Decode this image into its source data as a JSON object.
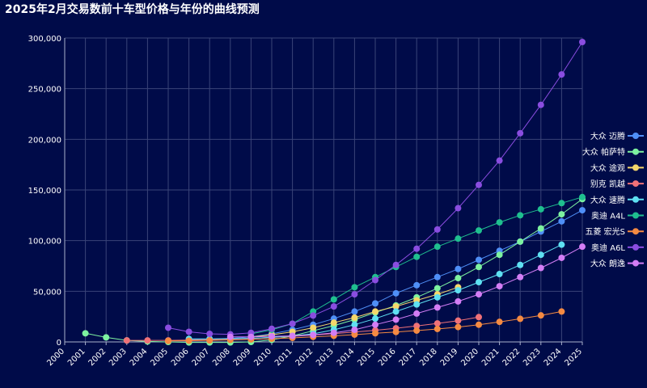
{
  "chart_data": {
    "type": "line",
    "title": "2025年2月交易数前十车型价格与年份的曲线预测",
    "xlabel": "",
    "ylabel": "",
    "x": [
      2000,
      2001,
      2002,
      2003,
      2004,
      2005,
      2006,
      2007,
      2008,
      2009,
      2010,
      2011,
      2012,
      2013,
      2014,
      2015,
      2016,
      2017,
      2018,
      2019,
      2020,
      2021,
      2022,
      2023,
      2024,
      2025
    ],
    "xlim": [
      2000,
      2025
    ],
    "ylim": [
      0,
      300000
    ],
    "yticks": [
      0,
      50000,
      100000,
      150000,
      200000,
      250000,
      300000
    ],
    "ytick_labels": [
      "0",
      "50,000",
      "100,000",
      "150,000",
      "200,000",
      "250,000",
      "300,000"
    ],
    "grid": true,
    "legend_position": "right",
    "series": [
      {
        "name": "大众 迈腾",
        "color": "#4f8ff7",
        "points": [
          [
            2006,
            2500
          ],
          [
            2007,
            2800
          ],
          [
            2008,
            3500
          ],
          [
            2009,
            5000
          ],
          [
            2010,
            8000
          ],
          [
            2011,
            12000
          ],
          [
            2012,
            17000
          ],
          [
            2013,
            23000
          ],
          [
            2014,
            30000
          ],
          [
            2015,
            38000
          ],
          [
            2016,
            48000
          ],
          [
            2017,
            56000
          ],
          [
            2018,
            64000
          ],
          [
            2019,
            72000
          ],
          [
            2020,
            81000
          ],
          [
            2021,
            90000
          ],
          [
            2022,
            99000
          ],
          [
            2023,
            109000
          ],
          [
            2024,
            119000
          ],
          [
            2025,
            130000
          ]
        ]
      },
      {
        "name": "大众 帕萨特",
        "color": "#7df2a0",
        "points": [
          [
            2001,
            8500
          ],
          [
            2002,
            4500
          ],
          [
            2003,
            1500
          ],
          [
            2004,
            500
          ],
          [
            2005,
            0
          ],
          [
            2006,
            -500
          ],
          [
            2007,
            -500
          ],
          [
            2008,
            -500
          ],
          [
            2009,
            0
          ],
          [
            2010,
            2000
          ],
          [
            2011,
            6000
          ],
          [
            2012,
            11000
          ],
          [
            2013,
            16000
          ],
          [
            2014,
            22000
          ],
          [
            2015,
            29000
          ],
          [
            2016,
            36000
          ],
          [
            2017,
            44000
          ],
          [
            2018,
            53000
          ],
          [
            2019,
            63000
          ],
          [
            2020,
            74000
          ],
          [
            2021,
            86000
          ],
          [
            2022,
            99000
          ],
          [
            2023,
            112000
          ],
          [
            2024,
            126000
          ],
          [
            2025,
            141000
          ]
        ]
      },
      {
        "name": "大众 途观",
        "color": "#f5d76b",
        "points": [
          [
            2009,
            5000
          ],
          [
            2010,
            7000
          ],
          [
            2011,
            10000
          ],
          [
            2012,
            14000
          ],
          [
            2013,
            19000
          ],
          [
            2014,
            24000
          ],
          [
            2015,
            30000
          ],
          [
            2016,
            35000
          ],
          [
            2017,
            41000
          ],
          [
            2018,
            47000
          ],
          [
            2019,
            54000
          ]
        ]
      },
      {
        "name": "别克 凯越",
        "color": "#f07178",
        "points": [
          [
            2003,
            1500
          ],
          [
            2004,
            1500
          ],
          [
            2005,
            1500
          ],
          [
            2006,
            1800
          ],
          [
            2007,
            2200
          ],
          [
            2008,
            2800
          ],
          [
            2009,
            3500
          ],
          [
            2010,
            4500
          ],
          [
            2011,
            5500
          ],
          [
            2012,
            6800
          ],
          [
            2013,
            8200
          ],
          [
            2014,
            9700
          ],
          [
            2015,
            11500
          ],
          [
            2016,
            13500
          ],
          [
            2017,
            15800
          ],
          [
            2018,
            18300
          ],
          [
            2019,
            21000
          ],
          [
            2020,
            24500
          ]
        ]
      },
      {
        "name": "大众 速腾",
        "color": "#5ee0f2",
        "points": [
          [
            2006,
            3000
          ],
          [
            2007,
            3000
          ],
          [
            2008,
            3200
          ],
          [
            2009,
            3600
          ],
          [
            2010,
            4500
          ],
          [
            2011,
            6000
          ],
          [
            2012,
            8000
          ],
          [
            2013,
            12000
          ],
          [
            2014,
            17000
          ],
          [
            2015,
            23000
          ],
          [
            2016,
            30000
          ],
          [
            2017,
            37000
          ],
          [
            2018,
            44000
          ],
          [
            2019,
            51000
          ],
          [
            2020,
            59000
          ],
          [
            2021,
            67000
          ],
          [
            2022,
            76000
          ],
          [
            2023,
            86000
          ],
          [
            2024,
            96000
          ]
        ]
      },
      {
        "name": "奥迪 A4L",
        "color": "#1fbf8f",
        "points": [
          [
            2009,
            8000
          ],
          [
            2010,
            12000
          ],
          [
            2011,
            18000
          ],
          [
            2012,
            30000
          ],
          [
            2013,
            42000
          ],
          [
            2014,
            54000
          ],
          [
            2015,
            64000
          ],
          [
            2016,
            74000
          ],
          [
            2017,
            84000
          ],
          [
            2018,
            94000
          ],
          [
            2019,
            102000
          ],
          [
            2020,
            110000
          ],
          [
            2021,
            118000
          ],
          [
            2022,
            125000
          ],
          [
            2023,
            131000
          ],
          [
            2024,
            137000
          ],
          [
            2025,
            143000
          ]
        ]
      },
      {
        "name": "五菱 宏光S",
        "color": "#f58a42",
        "points": [
          [
            2005,
            1000
          ],
          [
            2006,
            1200
          ],
          [
            2007,
            1500
          ],
          [
            2008,
            2000
          ],
          [
            2009,
            2500
          ],
          [
            2010,
            3200
          ],
          [
            2011,
            4000
          ],
          [
            2012,
            5000
          ],
          [
            2013,
            6000
          ],
          [
            2014,
            7200
          ],
          [
            2015,
            8500
          ],
          [
            2016,
            9800
          ],
          [
            2017,
            11200
          ],
          [
            2018,
            12800
          ],
          [
            2019,
            14700
          ],
          [
            2020,
            17000
          ],
          [
            2021,
            19800
          ],
          [
            2022,
            22800
          ],
          [
            2023,
            26200
          ],
          [
            2024,
            30000
          ]
        ]
      },
      {
        "name": "奥迪 A6L",
        "color": "#8a4de0",
        "points": [
          [
            2005,
            14000
          ],
          [
            2006,
            10000
          ],
          [
            2007,
            8000
          ],
          [
            2008,
            7500
          ],
          [
            2009,
            9000
          ],
          [
            2010,
            13000
          ],
          [
            2011,
            18000
          ],
          [
            2012,
            26000
          ],
          [
            2013,
            35000
          ],
          [
            2014,
            47000
          ],
          [
            2015,
            61000
          ],
          [
            2016,
            76000
          ],
          [
            2017,
            92000
          ],
          [
            2018,
            111000
          ],
          [
            2019,
            132000
          ],
          [
            2020,
            155000
          ],
          [
            2021,
            179000
          ],
          [
            2022,
            206000
          ],
          [
            2023,
            234000
          ],
          [
            2024,
            264000
          ],
          [
            2025,
            296000
          ]
        ]
      },
      {
        "name": "大众 朗逸",
        "color": "#d37df5",
        "points": [
          [
            2008,
            5000
          ],
          [
            2009,
            5000
          ],
          [
            2010,
            5500
          ],
          [
            2011,
            6000
          ],
          [
            2012,
            7000
          ],
          [
            2013,
            9000
          ],
          [
            2014,
            12000
          ],
          [
            2015,
            17000
          ],
          [
            2016,
            22000
          ],
          [
            2017,
            28000
          ],
          [
            2018,
            34000
          ],
          [
            2019,
            40000
          ],
          [
            2020,
            47000
          ],
          [
            2021,
            55000
          ],
          [
            2022,
            64000
          ],
          [
            2023,
            73000
          ],
          [
            2024,
            83000
          ],
          [
            2025,
            94000
          ]
        ]
      }
    ]
  }
}
